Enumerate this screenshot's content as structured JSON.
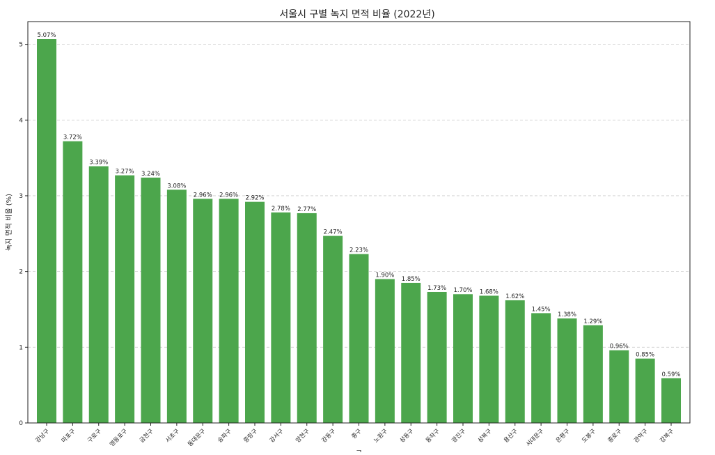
{
  "chart_data": {
    "type": "bar",
    "title": "서울시 구별 녹지 면적 비율 (2022년)",
    "xlabel": "구",
    "ylabel": "녹지 면적 비율 (%)",
    "ylim": [
      0,
      5.3
    ],
    "yticks": [
      0,
      1,
      2,
      3,
      4,
      5
    ],
    "grid": "horizontal dashed",
    "bar_color": "#4ca64c",
    "categories": [
      "강남구",
      "마포구",
      "구로구",
      "영등포구",
      "금천구",
      "서초구",
      "동대문구",
      "송파구",
      "중랑구",
      "강서구",
      "양천구",
      "강동구",
      "중구",
      "노원구",
      "성동구",
      "동작구",
      "광진구",
      "성북구",
      "용산구",
      "서대문구",
      "은평구",
      "도봉구",
      "종로구",
      "관악구",
      "강북구"
    ],
    "values": [
      5.07,
      3.72,
      3.39,
      3.27,
      3.24,
      3.08,
      2.96,
      2.96,
      2.92,
      2.78,
      2.77,
      2.47,
      2.23,
      1.9,
      1.85,
      1.73,
      1.7,
      1.68,
      1.62,
      1.45,
      1.38,
      1.29,
      0.96,
      0.85,
      0.59
    ],
    "value_labels": [
      "5.07%",
      "3.72%",
      "3.39%",
      "3.27%",
      "3.24%",
      "3.08%",
      "2.96%",
      "2.96%",
      "2.92%",
      "2.78%",
      "2.77%",
      "2.47%",
      "2.23%",
      "1.90%",
      "1.85%",
      "1.73%",
      "1.70%",
      "1.68%",
      "1.62%",
      "1.45%",
      "1.38%",
      "1.29%",
      "0.96%",
      "0.85%",
      "0.59%"
    ]
  }
}
